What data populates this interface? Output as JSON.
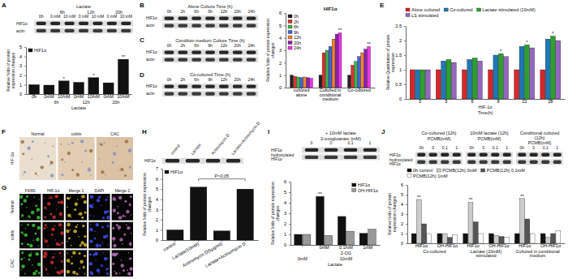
{
  "panel_labels": [
    "A",
    "B",
    "C",
    "D",
    "E",
    "F",
    "G",
    "H",
    "I",
    "J"
  ],
  "blots": [
    {
      "sections": [
        {
          "title": "Lactate",
          "column_groups": [
            {
              "label": "6h",
              "from": 1,
              "to": 2
            },
            {
              "label": "12h",
              "from": 3,
              "to": 4
            },
            {
              "label": "20h",
              "from": 5,
              "to": 6
            }
          ],
          "columns": [
            "0h",
            "0 mM",
            "10 mM",
            "0 mM",
            "10 mM",
            "0 mM",
            "10 mM"
          ]
        }
      ],
      "rows": [
        "HIF1α",
        "actin"
      ]
    },
    {
      "sections": [
        {
          "title": "Alone Culture Time (h)",
          "columns": [
            "0h",
            "2h",
            "6h",
            "9h",
            "12h",
            "20h",
            "24h"
          ]
        }
      ],
      "rows": [
        "HIF1α",
        "actin"
      ]
    },
    {
      "sections": [
        {
          "title": "Condition medium Culture Time (h)",
          "columns": [
            "0h",
            "2h",
            "6h",
            "9h",
            "12h",
            "20h",
            "24h"
          ]
        }
      ],
      "rows": [
        "HIF1α",
        "actin"
      ]
    },
    {
      "sections": [
        {
          "title": "Co-cultured Time (h)",
          "columns": [
            "0h",
            "2h",
            "6h",
            "9h",
            "12h",
            "20h",
            "24h"
          ]
        }
      ],
      "rows": [
        "HIF1α",
        "actin"
      ]
    },
    {
      "sections": [
        {
          "columns": [
            "control",
            "Lactate",
            "Actinomycin D",
            "Lactate+Actinomycin D"
          ]
        }
      ],
      "rows": [
        "HIF1α"
      ]
    },
    {
      "sections": [
        {
          "title": "+ 10mM lactate",
          "subtitle": "2-oxoglutarate (mM)",
          "columns": [
            "0",
            "0",
            "0.1",
            "1"
          ]
        }
      ],
      "rows": [
        "HIF1α",
        "hydroxylated HIF1α"
      ]
    },
    {
      "sections": [
        {
          "title": "Co-cultured (12h)",
          "subtitle": "PCMB(mM)",
          "columns": [
            "0h",
            "0",
            "0.1",
            "1"
          ]
        },
        {
          "title": "10mM lactate (12h)",
          "subtitle": "PCMB(mM)",
          "columns": [
            "0h",
            "0",
            "0.1",
            "1"
          ]
        },
        {
          "title": "Conditional cultured (12h)",
          "subtitle": "PCMB(mM)",
          "columns": [
            "0h",
            "0",
            "0.1",
            "1"
          ]
        }
      ],
      "rows": [
        "HIF1α",
        "hydroxylated HIF1α"
      ]
    }
  ],
  "images": [
    {
      "columns": [
        "Normal",
        "colitis",
        "CAC"
      ],
      "rows": [
        "HIF-1α"
      ]
    },
    {
      "columns": [
        "F4/80",
        "HIF-1α",
        "Merge 1",
        "DAPI",
        "Merge 2"
      ],
      "rows": [
        "Normal",
        "colitis",
        "CAC"
      ]
    }
  ],
  "chart_data": [
    {
      "type": "bar",
      "ylabel": "Relative folds of protein expression changes",
      "xlabel": "Lactate",
      "categories": [
        "0h",
        "0mM",
        "10mM",
        "0mM",
        "10mM",
        "0mM",
        "10mM"
      ],
      "category_groups": [
        [
          {
            "label": "6h",
            "from": 1,
            "to": 2
          },
          {
            "label": "12h",
            "from": 3,
            "to": 4
          },
          {
            "label": "20h",
            "from": 5,
            "to": 6
          }
        ]
      ],
      "series": [
        {
          "name": "HIF1α",
          "color": "#111111",
          "values": [
            1.0,
            0.95,
            1.4,
            1.25,
            1.75,
            1.2,
            3.7
          ]
        }
      ],
      "ylim": [
        0,
        5
      ],
      "yticks": [
        0,
        1,
        2,
        3,
        4,
        5
      ],
      "legend": "upper left",
      "grid": false,
      "annotations": [
        {
          "text": "*",
          "series": 0,
          "index": 2
        },
        {
          "text": "*",
          "series": 0,
          "index": 4
        },
        {
          "text": "**",
          "series": 0,
          "index": 6
        }
      ]
    },
    {
      "type": "bar",
      "title": "HIF1α",
      "ylabel": "Relative folds of protein expression changes",
      "categories": [
        "cultured alone",
        "Cultured in conditional medium",
        "Co-cultured"
      ],
      "series": [
        {
          "name": "0h",
          "color": "#222222",
          "values": [
            1.0,
            1.0,
            1.0
          ]
        },
        {
          "name": "2h",
          "color": "#e03030",
          "values": [
            0.9,
            2.8,
            1.8
          ]
        },
        {
          "name": "6h",
          "color": "#3cb44b",
          "values": [
            0.85,
            3.0,
            2.1
          ]
        },
        {
          "name": "9h",
          "color": "#4363d8",
          "values": [
            0.8,
            3.3,
            2.5
          ]
        },
        {
          "name": "12h",
          "color": "#f58231",
          "values": [
            0.85,
            3.9,
            2.8
          ]
        },
        {
          "name": "20h",
          "color": "#911eb4",
          "values": [
            0.8,
            4.3,
            3.1
          ]
        },
        {
          "name": "24h",
          "color": "#f032e6",
          "values": [
            0.75,
            4.4,
            3.3
          ]
        }
      ],
      "ylim": [
        0,
        6
      ],
      "yticks": [
        0,
        1,
        2,
        3,
        4,
        5,
        6
      ],
      "legend": "upper left",
      "grid": false,
      "annotations": [
        {
          "text": "**",
          "series": 6,
          "index": 1
        },
        {
          "text": "**",
          "series": 6,
          "index": 2
        }
      ]
    },
    {
      "type": "bar",
      "ylabel": "Relative Quantitation of protein expression",
      "xlabel": "Time(h)",
      "categories": [
        "0",
        "3",
        "6",
        "9",
        "12",
        "18"
      ],
      "category_groups": [
        [
          {
            "label": "HIF-1α",
            "from": 0,
            "to": 5
          }
        ]
      ],
      "series": [
        {
          "name": "Alone cultured",
          "color": "#d62728",
          "values": [
            1.0,
            1.0,
            1.0,
            1.0,
            1.0,
            1.0
          ]
        },
        {
          "name": "Co-cultured",
          "color": "#1f77b4",
          "values": [
            1.0,
            1.3,
            1.35,
            1.5,
            1.8,
            2.05
          ]
        },
        {
          "name": "Lactate stimulated (10mM)",
          "color": "#2ca02c",
          "values": [
            1.0,
            1.35,
            1.4,
            1.55,
            1.85,
            2.15
          ]
        },
        {
          "name": "LS stimulated",
          "color": "#9467bd",
          "values": [
            1.0,
            1.25,
            1.3,
            1.45,
            1.75,
            2.0
          ]
        }
      ],
      "ylim": [
        0,
        2.5
      ],
      "yticks": [
        0,
        0.5,
        1,
        1.5,
        2,
        2.5
      ],
      "legend": "top",
      "grid": false,
      "annotations": [
        {
          "text": "*",
          "series": 2,
          "index": 3
        },
        {
          "text": "*",
          "series": 2,
          "index": 4
        },
        {
          "text": "*",
          "series": 2,
          "index": 5
        }
      ]
    },
    {
      "type": "bar",
      "ylabel": "Relative folds of protein expression changes",
      "categories": [
        "control",
        "Lactate(10mM)",
        "Actinomycin D(5μg/ml)",
        "Lactate+Actinomycin D"
      ],
      "series": [
        {
          "name": "HIF1α",
          "color": "#111111",
          "values": [
            1.0,
            5.2,
            0.9,
            5.0
          ]
        }
      ],
      "ylim": [
        0,
        7
      ],
      "yticks": [
        0,
        1,
        2,
        3,
        4,
        5,
        6,
        7
      ],
      "legend": "upper left",
      "grid": false,
      "annotations": [
        {
          "text": "P>0.05",
          "from": 1,
          "to": 3,
          "y": 6.0
        }
      ]
    },
    {
      "type": "bar",
      "ylabel": "Relative folds of protein expression changes",
      "xlabel": "Lactate",
      "categories": [
        null,
        "0mM",
        "0.1mM",
        "1mM"
      ],
      "category_groups": [
        [
          {
            "label": "2-OG",
            "from": 1,
            "to": 3
          }
        ],
        [
          {
            "label": "0mM",
            "from": 0,
            "to": 0
          },
          {
            "label": "10mM",
            "from": 1,
            "to": 3
          }
        ]
      ],
      "series": [
        {
          "name": "HIF1α",
          "color": "#111111",
          "values": [
            1.0,
            4.6,
            2.7,
            1.1
          ]
        },
        {
          "name": "OH-HIF1α",
          "color": "#999999",
          "values": [
            1.0,
            0.9,
            1.3,
            1.5
          ]
        }
      ],
      "ylim": [
        0,
        6
      ],
      "yticks": [
        0,
        1,
        2,
        3,
        4,
        5,
        6
      ],
      "legend": "upper right",
      "grid": false,
      "annotations": [
        {
          "text": "**",
          "series": 0,
          "index": 1
        }
      ]
    },
    {
      "type": "bar",
      "ylabel": "Relative folds of protein expression changes",
      "categories": [
        "HIF1α",
        "OH-HIF1α",
        "HIF1α",
        "OH-HIF1α",
        "HIF1α",
        "OH-HIF1α"
      ],
      "category_groups": [
        [
          {
            "label": "Co-cultured",
            "from": 0,
            "to": 1
          },
          {
            "label": "Lactate (10mM) stimulated",
            "from": 2,
            "to": 3
          },
          {
            "label": "Cultured in conditional medium",
            "from": 4,
            "to": 5
          }
        ]
      ],
      "series": [
        {
          "name": "0h control",
          "color": "#111111",
          "values": [
            1.0,
            1.0,
            1.0,
            1.0,
            1.0,
            1.0
          ]
        },
        {
          "name": "PCMB(12h) 0mM",
          "color": "#cccccc",
          "values": [
            4.5,
            1.0,
            4.2,
            0.8,
            4.6,
            0.6
          ]
        },
        {
          "name": "PCMB(12h) 0.1mM",
          "color": "#555555",
          "values": [
            2.0,
            0.6,
            2.2,
            0.7,
            2.5,
            1.0
          ]
        },
        {
          "name": "PCMB(12h) 1mM",
          "color": "#ffffff",
          "values": [
            1.0,
            0.9,
            1.0,
            0.6,
            1.0,
            1.3
          ]
        }
      ],
      "ylim": [
        0,
        6
      ],
      "yticks": [
        0,
        1,
        2,
        3,
        4,
        5,
        6
      ],
      "legend": "top",
      "grid": false,
      "annotations": [
        {
          "text": "**",
          "series": 1,
          "index": 0
        },
        {
          "text": "**",
          "series": 1,
          "index": 2
        },
        {
          "text": "**",
          "series": 1,
          "index": 4
        }
      ]
    }
  ]
}
